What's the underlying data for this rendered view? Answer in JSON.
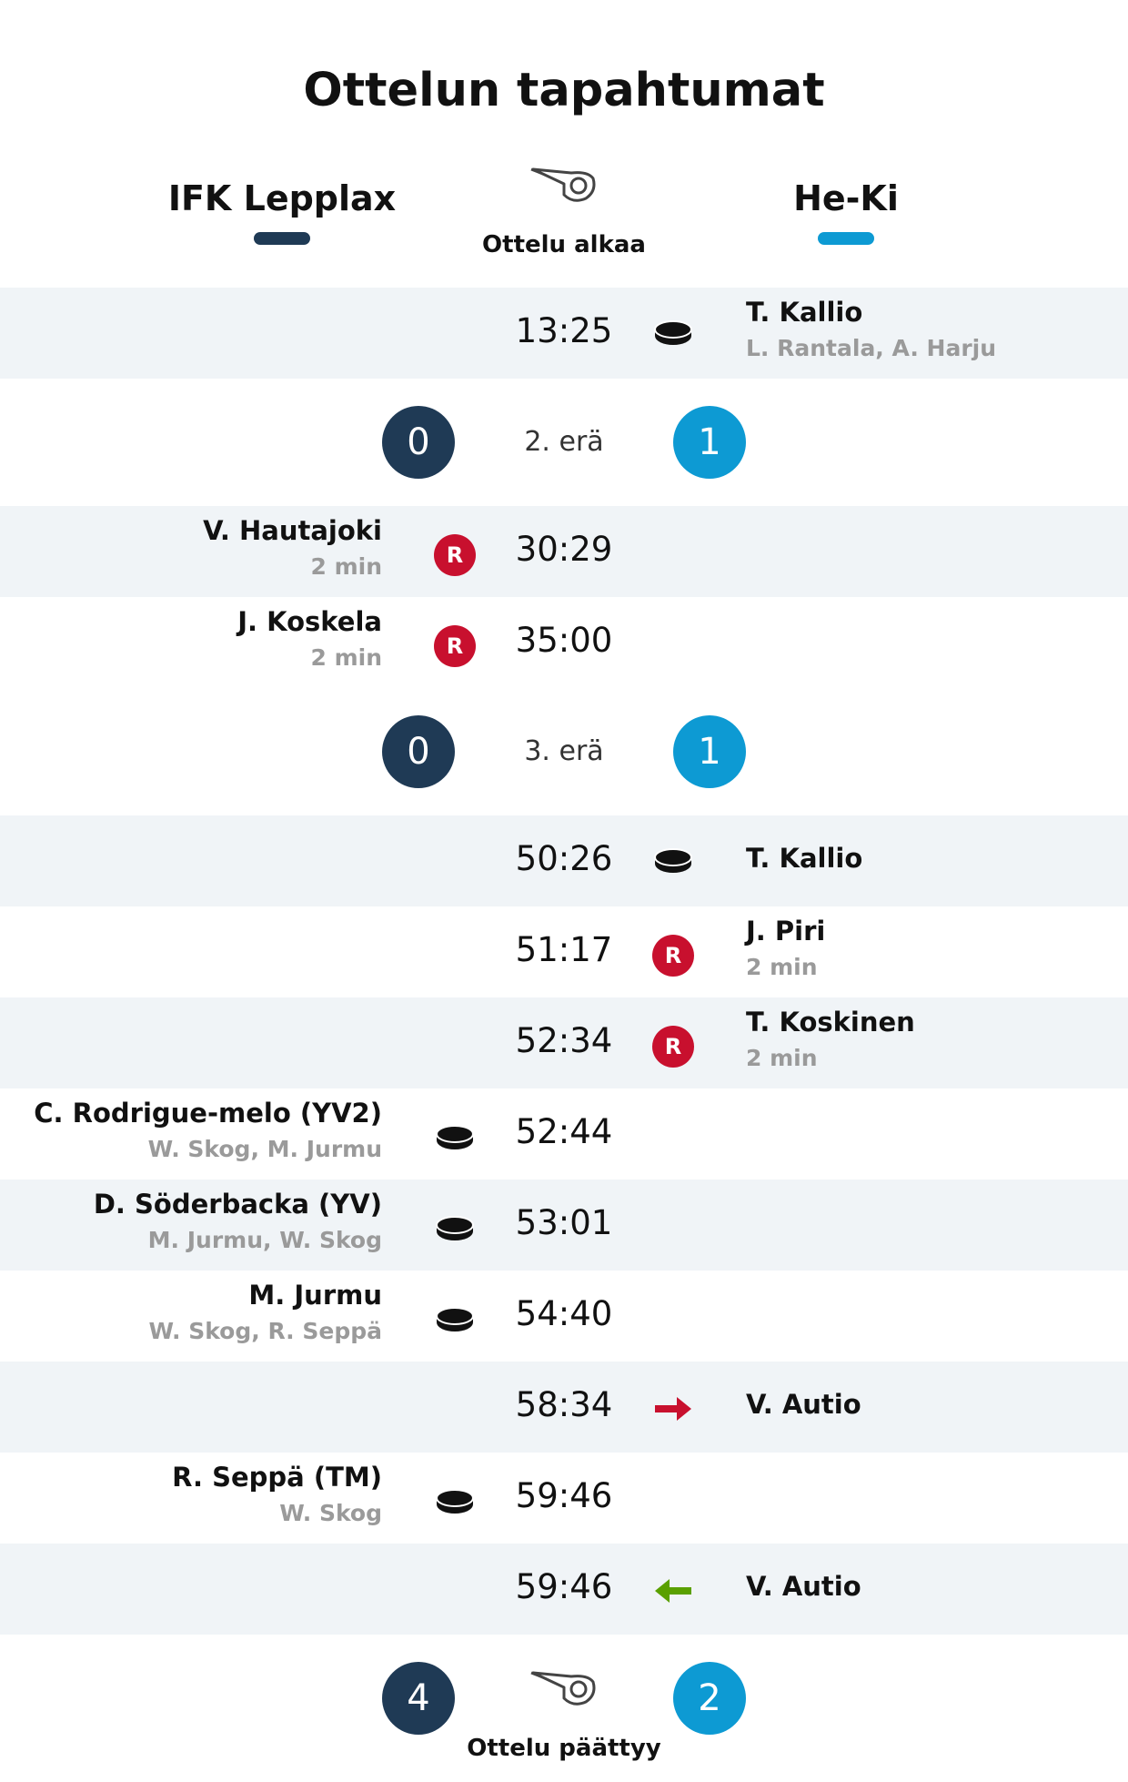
{
  "title": "Ottelun tapahtumat",
  "teams": {
    "home": {
      "name": "IFK Lepplax",
      "color": "#1f3a55"
    },
    "away": {
      "name": "He-Ki",
      "color": "#0d9ad3"
    }
  },
  "start": {
    "label": "Ottelu alkaa",
    "icon": "whistle-icon"
  },
  "end": {
    "label": "Ottelu päättyy",
    "icon": "whistle-icon",
    "home_score": "4",
    "away_score": "2"
  },
  "colors": {
    "penalty": "#c8102e",
    "sub_in": "#5aa000",
    "shaded_row": "#f0f4f7"
  },
  "events": [
    {
      "time": "13:25",
      "type": "goal",
      "side": "away",
      "name": "T. Kallio",
      "sub": "L. Rantala, A. Harju"
    },
    {
      "time": "30:29",
      "type": "penalty",
      "side": "home",
      "badge": "R",
      "name": "V. Hautajoki",
      "sub": "2 min"
    },
    {
      "time": "35:00",
      "type": "penalty",
      "side": "home",
      "badge": "R",
      "name": "J. Koskela",
      "sub": "2 min"
    },
    {
      "time": "50:26",
      "type": "goal",
      "side": "away",
      "name": "T. Kallio",
      "sub": ""
    },
    {
      "time": "51:17",
      "type": "penalty",
      "side": "away",
      "badge": "R",
      "name": "J. Piri",
      "sub": "2 min"
    },
    {
      "time": "52:34",
      "type": "penalty",
      "side": "away",
      "badge": "R",
      "name": "T. Koskinen",
      "sub": "2 min"
    },
    {
      "time": "52:44",
      "type": "goal",
      "side": "home",
      "name": "C. Rodrigue-melo (YV2)",
      "sub": "W. Skog, M. Jurmu"
    },
    {
      "time": "53:01",
      "type": "goal",
      "side": "home",
      "name": "D. Söderbacka (YV)",
      "sub": "M. Jurmu, W. Skog"
    },
    {
      "time": "54:40",
      "type": "goal",
      "side": "home",
      "name": "M. Jurmu",
      "sub": "W. Skog, R. Seppä"
    },
    {
      "time": "58:34",
      "type": "goalie_out",
      "side": "away",
      "name": "V. Autio",
      "sub": ""
    },
    {
      "time": "59:46",
      "type": "goal",
      "side": "home",
      "name": "R. Seppä (TM)",
      "sub": "W. Skog"
    },
    {
      "time": "59:46",
      "type": "goalie_in",
      "side": "away",
      "name": "V. Autio",
      "sub": ""
    }
  ],
  "period_breaks": [
    {
      "label": "2. erä",
      "home_score": "0",
      "away_score": "1"
    },
    {
      "label": "3. erä",
      "home_score": "0",
      "away_score": "1"
    }
  ]
}
